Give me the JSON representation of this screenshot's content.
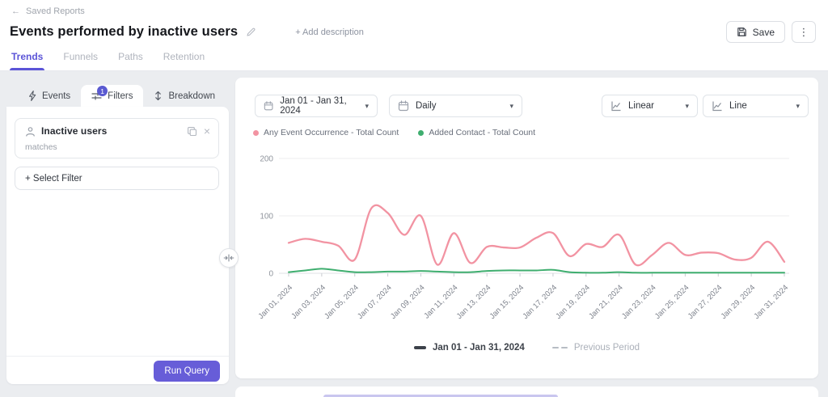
{
  "icons": {
    "back_arrow": "←",
    "kebab": "⋮",
    "close": "×",
    "chevron_down": "▾"
  },
  "header": {
    "back_label": "Saved Reports",
    "title": "Events performed by inactive users",
    "add_description_label": "+ Add description",
    "save_label": "Save",
    "tabs": [
      {
        "label": "Trends",
        "active": true
      },
      {
        "label": "Funnels",
        "active": false
      },
      {
        "label": "Paths",
        "active": false
      },
      {
        "label": "Retention",
        "active": false
      }
    ]
  },
  "query_panel": {
    "tabs": [
      {
        "label": "Events",
        "active": false
      },
      {
        "label": "Filters",
        "badge": "1",
        "active": true
      },
      {
        "label": "Breakdown",
        "active": false
      }
    ],
    "filter_card": {
      "name": "Inactive users",
      "operator": "matches"
    },
    "select_filter_label": "+ Select Filter",
    "run_query_label": "Run Query"
  },
  "chart_controls": {
    "date_range": "Jan 01 - Jan 31, 2024",
    "granularity": "Daily",
    "scale": "Linear",
    "chart_type": "Line"
  },
  "chart_data": {
    "type": "line",
    "n_points": 31,
    "ylim": [
      0,
      200
    ],
    "yticks": [
      0,
      100,
      200
    ],
    "grid": "horizontal",
    "legend_position": "top",
    "x_tick_labels": [
      "Jan 01, 2024",
      "Jan 03, 2024",
      "Jan 05, 2024",
      "Jan 07, 2024",
      "Jan 09, 2024",
      "Jan 11, 2024",
      "Jan 13, 2024",
      "Jan 15, 2024",
      "Jan 17, 2024",
      "Jan 19, 2024",
      "Jan 21, 2024",
      "Jan 23, 2024",
      "Jan 25, 2024",
      "Jan 27, 2024",
      "Jan 29, 2024",
      "Jan 31, 2024"
    ],
    "series": [
      {
        "name": "Any Event Occurrence - Total Count",
        "color": "#f293a2",
        "values": [
          53,
          60,
          55,
          48,
          24,
          113,
          105,
          67,
          100,
          15,
          70,
          18,
          46,
          45,
          45,
          62,
          70,
          30,
          51,
          46,
          67,
          15,
          32,
          53,
          32,
          36,
          35,
          24,
          27,
          55,
          20
        ]
      },
      {
        "name": "Added Contact - Total Count",
        "color": "#3fae6f",
        "values": [
          2,
          5,
          8,
          5,
          2,
          2,
          3,
          3,
          4,
          3,
          2,
          2,
          4,
          5,
          5,
          5,
          6,
          2,
          1,
          1,
          2,
          1,
          1,
          1,
          1,
          1,
          1,
          1,
          1,
          1,
          1
        ]
      }
    ],
    "bottom_legend": [
      {
        "label": "Jan 01 - Jan 31, 2024",
        "style": "solid"
      },
      {
        "label": "Previous Period",
        "style": "dashed"
      }
    ]
  }
}
